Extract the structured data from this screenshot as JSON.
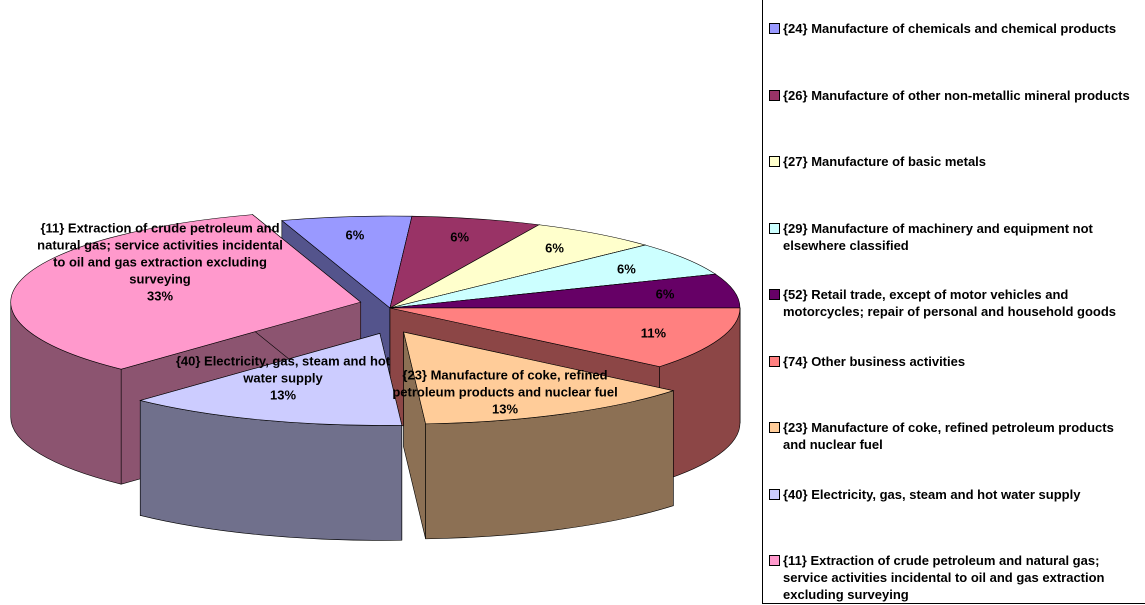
{
  "chart_data": {
    "type": "pie",
    "categories": [
      "{24} Manufacture of chemicals and chemical products",
      "{26} Manufacture of other non-metallic mineral products",
      "{27} Manufacture of basic metals",
      "{29} Manufacture of machinery and equipment not elsewhere classified",
      "{52} Retail trade, except of motor vehicles and motorcycles; repair of personal and household goods",
      "{74} Other business activities",
      "{23} Manufacture of coke, refined petroleum products and nuclear fuel",
      "{40} Electricity, gas, steam and hot water supply",
      "{11} Extraction of crude petroleum and natural gas; service activities incidental to oil and gas extraction excluding surveying"
    ],
    "values": [
      6,
      6,
      6,
      6,
      6,
      11,
      13,
      13,
      33
    ],
    "value_labels": [
      "6%",
      "6%",
      "6%",
      "6%",
      "6%",
      "11%",
      "13%",
      "13%",
      "33%"
    ],
    "colors": [
      "#9999ff",
      "#993366",
      "#ffffcc",
      "#ccffff",
      "#660066",
      "#ff8080",
      "#ffcc99",
      "#ccccff",
      "#ff99cc"
    ],
    "legend": "right"
  }
}
